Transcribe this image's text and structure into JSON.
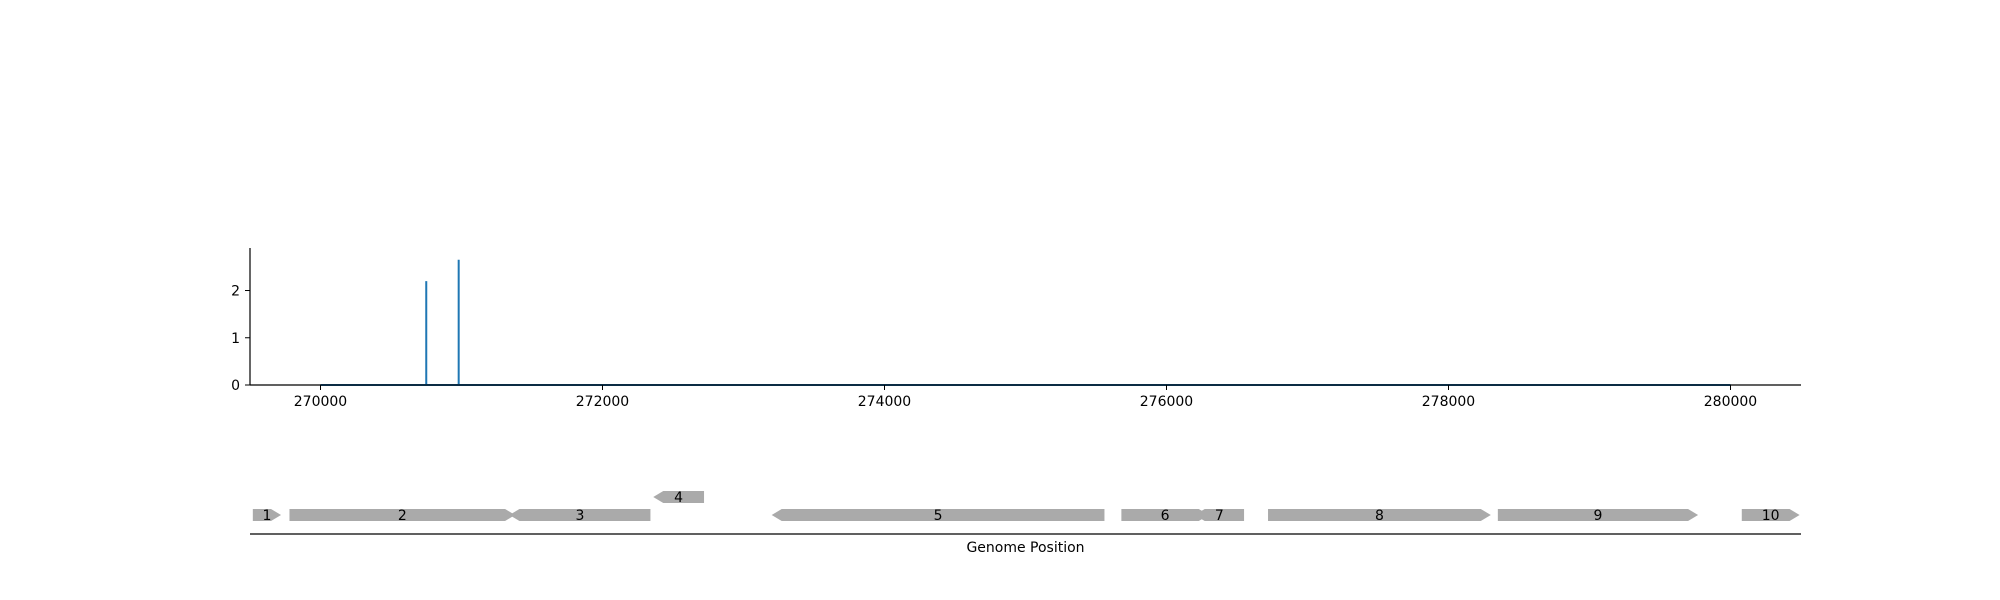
{
  "chart_data": [
    {
      "type": "line",
      "title": "",
      "xlabel": "",
      "ylabel": "",
      "xlim": [
        269500,
        280500
      ],
      "ylim": [
        0,
        2.9
      ],
      "x_ticks": [
        270000,
        272000,
        274000,
        276000,
        278000,
        280000
      ],
      "y_ticks": [
        0,
        1,
        2
      ],
      "grid": false,
      "legend": "none",
      "baseline": {
        "x_start": 270000,
        "x_end": 280000,
        "y": 0
      },
      "series": [
        {
          "color": "#1f77b4",
          "points": [
            {
              "x": 270750,
              "y": 2.2
            },
            {
              "x": 270980,
              "y": 2.65
            }
          ]
        }
      ]
    },
    {
      "type": "gene-track",
      "xlabel": "Genome Position",
      "xlim": [
        269500,
        280500
      ],
      "gene_color": "#aaaaaa",
      "genes": [
        {
          "label": "1",
          "start": 269520,
          "end": 269720,
          "strand": "+",
          "row": 0
        },
        {
          "label": "2",
          "start": 269780,
          "end": 271380,
          "strand": "+",
          "row": 0
        },
        {
          "label": "3",
          "start": 271340,
          "end": 272340,
          "strand": "-",
          "row": 0
        },
        {
          "label": "4",
          "start": 272360,
          "end": 272720,
          "strand": "-",
          "row": 1
        },
        {
          "label": "5",
          "start": 273200,
          "end": 275560,
          "strand": "-",
          "row": 0
        },
        {
          "label": "6",
          "start": 275680,
          "end": 276300,
          "strand": "+",
          "row": 0
        },
        {
          "label": "7",
          "start": 276200,
          "end": 276550,
          "strand": "-",
          "row": 0
        },
        {
          "label": "8",
          "start": 276720,
          "end": 278300,
          "strand": "+",
          "row": 0
        },
        {
          "label": "9",
          "start": 278350,
          "end": 279770,
          "strand": "+",
          "row": 0
        },
        {
          "label": "10",
          "start": 280080,
          "end": 280490,
          "strand": "+",
          "row": 0
        }
      ]
    }
  ]
}
